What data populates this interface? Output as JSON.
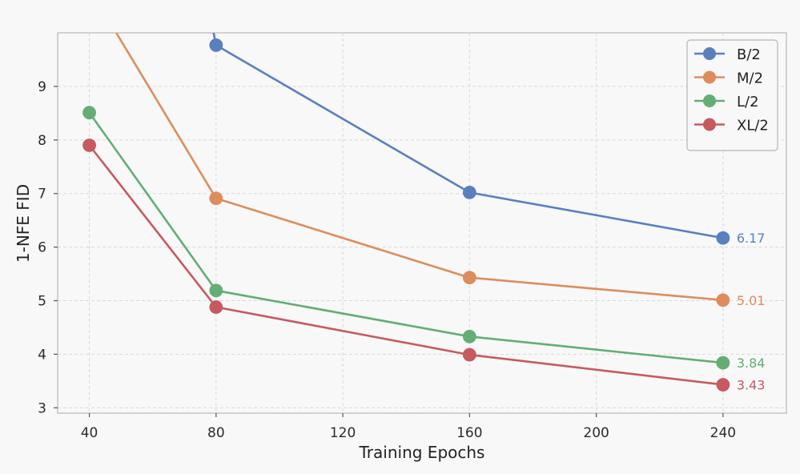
{
  "chart_data": {
    "type": "line",
    "xlabel": "Training Epochs",
    "ylabel": "1-NFE FID",
    "xlim": [
      30,
      260
    ],
    "ylim": [
      2.9,
      10.0
    ],
    "xticks": [
      40,
      80,
      120,
      160,
      200,
      240
    ],
    "yticks": [
      3,
      4,
      5,
      6,
      7,
      8,
      9
    ],
    "grid": true,
    "legend_position": "top-right",
    "series": [
      {
        "name": "B/2",
        "color": "#5a7fbe",
        "x": [
          80,
          160,
          240
        ],
        "y": [
          9.77,
          7.02,
          6.17
        ],
        "entry_from": {
          "x": 79.2,
          "y": 10.0
        },
        "end_label": "6.17"
      },
      {
        "name": "M/2",
        "color": "#dd8d5c",
        "x": [
          80,
          160,
          240
        ],
        "y": [
          6.91,
          5.43,
          5.01
        ],
        "entry_from": {
          "x": 48.5,
          "y": 10.0
        },
        "end_label": "5.01"
      },
      {
        "name": "L/2",
        "color": "#64ad74",
        "x": [
          40,
          80,
          160,
          240
        ],
        "y": [
          8.51,
          5.19,
          4.33,
          3.84
        ],
        "end_label": "3.84"
      },
      {
        "name": "XL/2",
        "color": "#c65a60",
        "x": [
          40,
          80,
          160,
          240
        ],
        "y": [
          7.9,
          4.88,
          3.99,
          3.43
        ],
        "end_label": "3.43"
      }
    ]
  }
}
